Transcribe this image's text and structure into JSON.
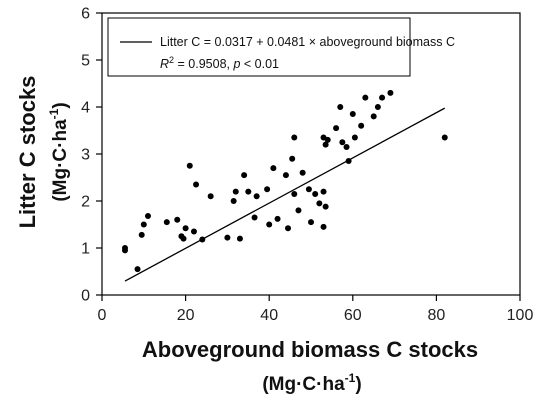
{
  "chart_data": {
    "type": "scatter",
    "xlabel": "Aboveground biomass C stocks",
    "xlabel_unit": "(Mg·C·ha",
    "ylabel": "Litter C stocks",
    "ylabel_unit": "(Mg·C·ha",
    "unit_superscript": "-1",
    "unit_close": ")",
    "xlim": [
      0,
      100
    ],
    "ylim": [
      0,
      6
    ],
    "x_ticks": [
      0,
      20,
      40,
      60,
      80,
      100
    ],
    "y_ticks": [
      0,
      1,
      2,
      3,
      4,
      5,
      6
    ],
    "grid": false,
    "legend_position": "top",
    "legend": {
      "equation": "Litter C = 0.0317 + 0.0481 × aboveground biomass C",
      "r_squared_symbol": "R",
      "r_squared_exponent": "2",
      "r_squared_value": " = 0.9508, ",
      "p_symbol": "p",
      "p_value": " < 0.01"
    },
    "fit_line": {
      "intercept": 0.0317,
      "slope": 0.0481,
      "x_range": [
        5.5,
        82
      ]
    },
    "points": [
      [
        5.5,
        0.95
      ],
      [
        5.5,
        1.0
      ],
      [
        8.5,
        0.55
      ],
      [
        9.5,
        1.28
      ],
      [
        10,
        1.5
      ],
      [
        11,
        1.68
      ],
      [
        15.5,
        1.55
      ],
      [
        18,
        1.6
      ],
      [
        19,
        1.25
      ],
      [
        19.5,
        1.2
      ],
      [
        20,
        1.42
      ],
      [
        21,
        2.75
      ],
      [
        22,
        1.35
      ],
      [
        22.5,
        2.35
      ],
      [
        24,
        1.18
      ],
      [
        26,
        2.1
      ],
      [
        30,
        1.22
      ],
      [
        31.5,
        2.0
      ],
      [
        32,
        2.2
      ],
      [
        33,
        1.2
      ],
      [
        34,
        2.55
      ],
      [
        35,
        2.2
      ],
      [
        36.5,
        1.65
      ],
      [
        37,
        2.1
      ],
      [
        39.5,
        2.25
      ],
      [
        40,
        1.5
      ],
      [
        41,
        2.7
      ],
      [
        42,
        1.62
      ],
      [
        44,
        2.55
      ],
      [
        44.5,
        1.42
      ],
      [
        45.5,
        2.9
      ],
      [
        46,
        3.35
      ],
      [
        46,
        2.15
      ],
      [
        47,
        1.8
      ],
      [
        48,
        2.6
      ],
      [
        49.5,
        2.25
      ],
      [
        50,
        1.55
      ],
      [
        51,
        2.15
      ],
      [
        52,
        1.95
      ],
      [
        53,
        2.2
      ],
      [
        53,
        1.45
      ],
      [
        53.5,
        1.88
      ],
      [
        53,
        3.35
      ],
      [
        53.5,
        3.2
      ],
      [
        54,
        3.3
      ],
      [
        56,
        3.55
      ],
      [
        57,
        4.0
      ],
      [
        57.5,
        3.25
      ],
      [
        58.5,
        3.15
      ],
      [
        59,
        2.85
      ],
      [
        60,
        3.85
      ],
      [
        60.5,
        3.35
      ],
      [
        62,
        3.6
      ],
      [
        63,
        4.2
      ],
      [
        65,
        3.8
      ],
      [
        66,
        4.0
      ],
      [
        67,
        4.2
      ],
      [
        69,
        4.3
      ],
      [
        82,
        3.35
      ]
    ]
  }
}
